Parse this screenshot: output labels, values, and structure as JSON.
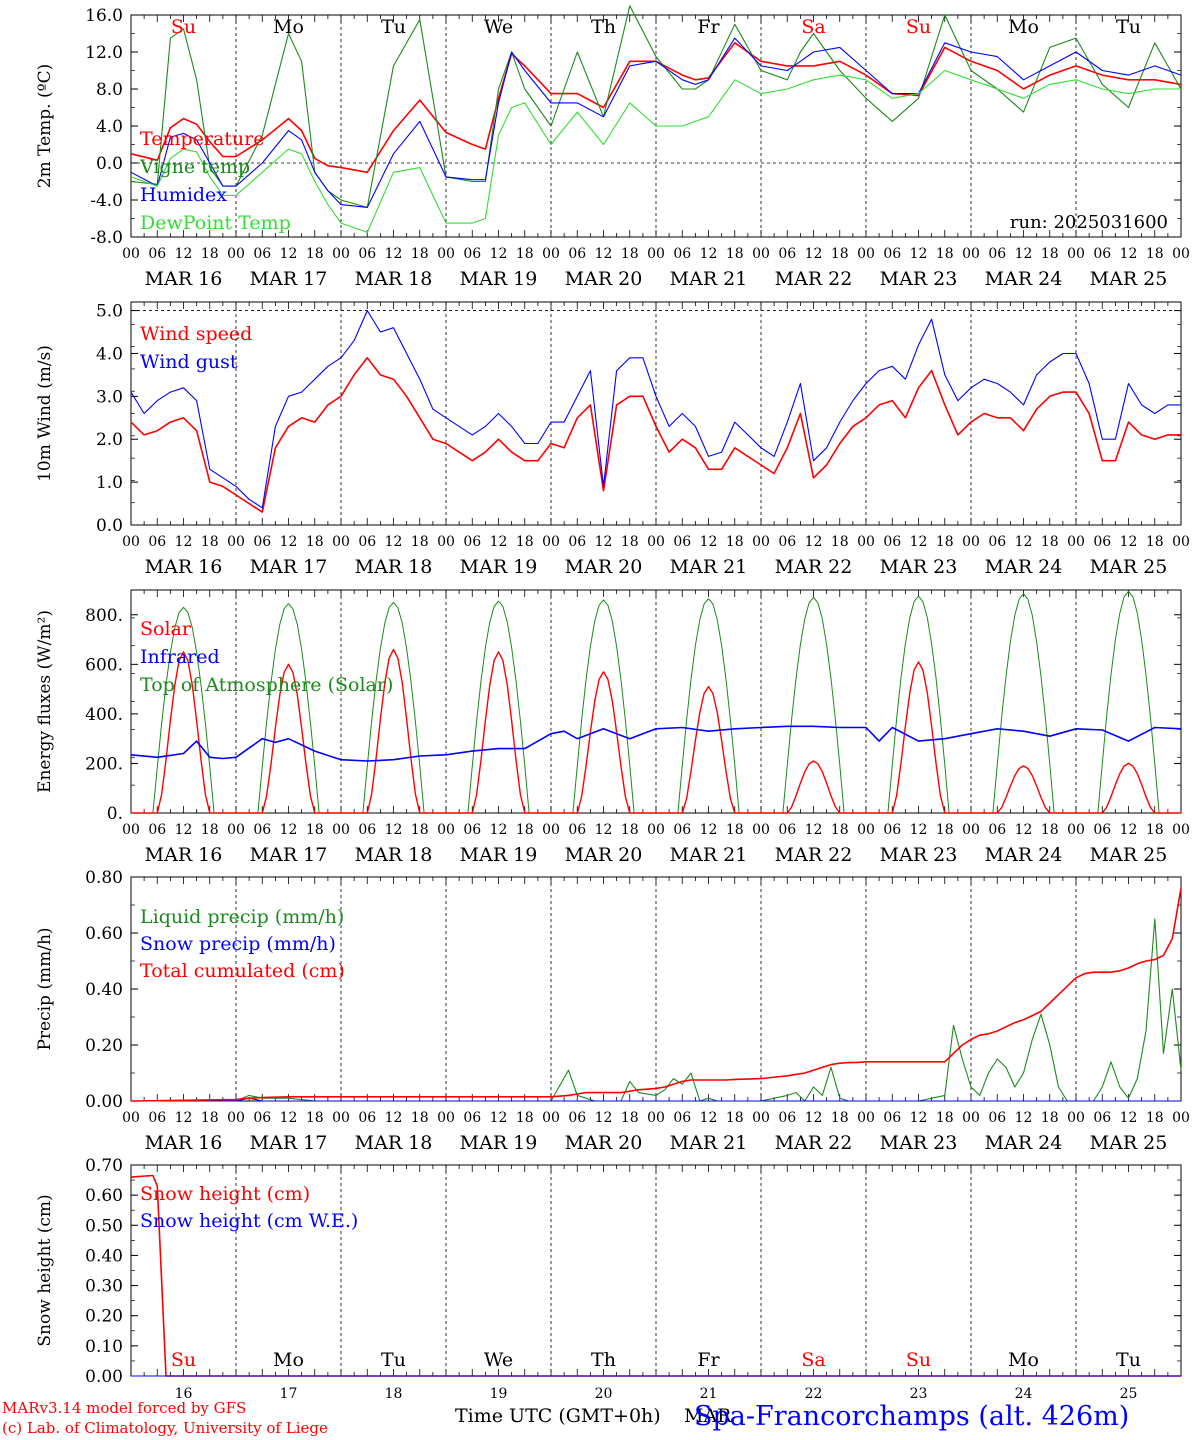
{
  "colors": {
    "red": "#ff0000",
    "green": "#1a8a1a",
    "blue": "#0000ff",
    "lightgreen": "#33dd33",
    "black": "#000000"
  },
  "days": {
    "weekday_top": [
      "Su",
      "Mo",
      "Tu",
      "We",
      "Th",
      "Fr",
      "Sa",
      "Su",
      "Mo",
      "Tu"
    ],
    "weekday_colors": [
      "red",
      "black",
      "black",
      "black",
      "black",
      "black",
      "red",
      "red",
      "black",
      "black"
    ],
    "date_labels": [
      "MAR 16",
      "MAR 17",
      "MAR 18",
      "MAR 19",
      "MAR 20",
      "MAR 21",
      "MAR 22",
      "MAR 23",
      "MAR 24",
      "MAR 25"
    ],
    "hour_ticks": [
      "00",
      "06",
      "12",
      "18"
    ],
    "final_hour": "00",
    "bottom_day_numbers": [
      "16",
      "17",
      "18",
      "19",
      "20",
      "21",
      "22",
      "23",
      "24",
      "25"
    ]
  },
  "footer": {
    "credit1": "MARv3.14 model forced by GFS",
    "credit2": "(c) Lab. of Climatology, University of Liege",
    "xlabel": "Time UTC (GMT+0h)",
    "month": "MAR",
    "station": "Spa-Francorchamps (alt. 426m)"
  },
  "chart_data": [
    {
      "type": "line",
      "ylabel": "2m Temp. (ºC)",
      "ylim": [
        -8,
        16
      ],
      "yticks": [
        "16.0",
        "12.0",
        "8.0",
        "4.0",
        "0.0",
        "-4.0",
        "-8.0"
      ],
      "annotation": "run: 2025031600",
      "x_hours_from_mar16_00": [
        0,
        6,
        9,
        12,
        15,
        18,
        21,
        24,
        30,
        36,
        39,
        42,
        45,
        48,
        54,
        60,
        66,
        72,
        78,
        81,
        84,
        87,
        90,
        96,
        102,
        108,
        114,
        120,
        126,
        129,
        132,
        138,
        144,
        150,
        153,
        156,
        162,
        168,
        174,
        180,
        186,
        192,
        198,
        204,
        210,
        216,
        222,
        228,
        234,
        240
      ],
      "series": [
        {
          "name": "Temperature",
          "color": "red",
          "values": [
            1.0,
            0.3,
            3.8,
            4.8,
            4.2,
            2.3,
            0.7,
            0.7,
            2.5,
            4.8,
            3.5,
            0.5,
            -0.3,
            -0.5,
            -1.0,
            3.5,
            6.8,
            3.3,
            2.0,
            1.5,
            7.0,
            11.8,
            10.5,
            7.5,
            7.5,
            6.0,
            11.0,
            11.0,
            9.5,
            9.0,
            9.2,
            13.0,
            11.0,
            10.5,
            10.5,
            10.5,
            11.0,
            9.5,
            7.5,
            7.3,
            12.5,
            11.0,
            10.0,
            8.0,
            9.5,
            10.5,
            9.5,
            9.0,
            9.0,
            8.5
          ]
        },
        {
          "name": "Vigne temp",
          "color": "green",
          "values": [
            -2.0,
            -2.3,
            13.5,
            14.5,
            9.0,
            -0.5,
            -2.5,
            -2.5,
            3.0,
            14.0,
            11.0,
            -1.0,
            -3.0,
            -4.0,
            -4.8,
            10.5,
            15.5,
            -1.5,
            -2.0,
            -2.0,
            8.0,
            12.0,
            8.0,
            4.0,
            12.0,
            5.0,
            17.0,
            11.5,
            8.0,
            8.0,
            9.0,
            15.0,
            10.0,
            9.0,
            12.0,
            14.0,
            10.0,
            7.0,
            4.5,
            7.0,
            16.0,
            10.0,
            8.0,
            5.5,
            12.5,
            13.5,
            8.5,
            6.0,
            13.0,
            8.0
          ]
        },
        {
          "name": "Humidex",
          "color": "blue",
          "values": [
            -1.0,
            -2.5,
            2.8,
            3.2,
            2.5,
            0.0,
            -2.5,
            -2.5,
            0.0,
            3.5,
            2.5,
            -1.0,
            -3.0,
            -4.5,
            -4.8,
            1.0,
            4.5,
            -1.5,
            -1.8,
            -1.8,
            6.5,
            12.0,
            10.0,
            6.5,
            6.5,
            5.0,
            10.5,
            11.0,
            9.0,
            8.5,
            9.0,
            13.5,
            10.5,
            10.0,
            11.0,
            12.0,
            12.5,
            10.0,
            7.5,
            7.5,
            13.0,
            12.0,
            11.5,
            9.0,
            10.5,
            12.0,
            10.0,
            9.5,
            10.5,
            9.5
          ]
        },
        {
          "name": "DewPoint Temp",
          "color": "lightgreen",
          "values": [
            -1.5,
            -2.5,
            0.5,
            1.5,
            1.2,
            -1.5,
            -3.5,
            -3.5,
            -1.0,
            1.5,
            1.0,
            -2.0,
            -4.5,
            -6.5,
            -7.5,
            -1.0,
            -0.5,
            -6.5,
            -6.5,
            -6.0,
            3.0,
            6.0,
            6.5,
            2.0,
            5.5,
            2.0,
            6.5,
            4.0,
            4.0,
            4.5,
            5.0,
            9.0,
            7.5,
            8.0,
            8.5,
            9.0,
            9.5,
            9.0,
            7.0,
            7.5,
            10.0,
            9.0,
            8.0,
            7.0,
            8.5,
            9.0,
            8.0,
            7.5,
            8.0,
            8.0
          ]
        }
      ]
    },
    {
      "type": "line",
      "ylabel": "10m Wind (m/s)",
      "ylim": [
        0,
        5.2
      ],
      "yticks": [
        "5.0",
        "4.0",
        "3.0",
        "2.0",
        "1.0",
        "0.0"
      ],
      "x_hours_from_mar16_00": [
        0,
        3,
        6,
        9,
        12,
        15,
        18,
        21,
        24,
        27,
        30,
        33,
        36,
        39,
        42,
        45,
        48,
        51,
        54,
        57,
        60,
        63,
        66,
        69,
        72,
        75,
        78,
        81,
        84,
        87,
        90,
        93,
        96,
        99,
        102,
        105,
        108,
        111,
        114,
        117,
        120,
        123,
        126,
        129,
        132,
        135,
        138,
        141,
        144,
        147,
        150,
        153,
        156,
        159,
        162,
        165,
        168,
        171,
        174,
        177,
        180,
        183,
        186,
        189,
        192,
        195,
        198,
        201,
        204,
        207,
        210,
        213,
        216,
        219,
        222,
        225,
        228,
        231,
        234,
        237,
        240
      ],
      "series": [
        {
          "name": "Wind speed",
          "color": "red",
          "values": [
            2.4,
            2.1,
            2.2,
            2.4,
            2.5,
            2.2,
            1.0,
            0.9,
            0.7,
            0.5,
            0.3,
            1.8,
            2.3,
            2.5,
            2.4,
            2.8,
            3.0,
            3.5,
            3.9,
            3.5,
            3.4,
            3.0,
            2.5,
            2.0,
            1.9,
            1.7,
            1.5,
            1.7,
            2.0,
            1.7,
            1.5,
            1.5,
            1.9,
            1.8,
            2.5,
            2.8,
            0.8,
            2.8,
            3.0,
            3.0,
            2.3,
            1.7,
            2.0,
            1.8,
            1.3,
            1.3,
            1.8,
            1.6,
            1.4,
            1.2,
            1.8,
            2.6,
            1.1,
            1.4,
            1.9,
            2.3,
            2.5,
            2.8,
            2.9,
            2.5,
            3.2,
            3.6,
            2.8,
            2.1,
            2.4,
            2.6,
            2.5,
            2.5,
            2.2,
            2.7,
            3.0,
            3.1,
            3.1,
            2.6,
            1.5,
            1.5,
            2.4,
            2.1,
            2.0,
            2.1,
            2.1
          ]
        },
        {
          "name": "Wind gust",
          "color": "blue",
          "values": [
            3.1,
            2.6,
            2.9,
            3.1,
            3.2,
            2.9,
            1.3,
            1.1,
            0.9,
            0.6,
            0.4,
            2.3,
            3.0,
            3.1,
            3.4,
            3.7,
            3.9,
            4.3,
            5.0,
            4.5,
            4.6,
            4.0,
            3.4,
            2.7,
            2.5,
            2.3,
            2.1,
            2.3,
            2.6,
            2.3,
            1.9,
            1.9,
            2.4,
            2.4,
            3.0,
            3.6,
            0.9,
            3.6,
            3.9,
            3.9,
            3.0,
            2.3,
            2.6,
            2.3,
            1.6,
            1.7,
            2.4,
            2.1,
            1.8,
            1.6,
            2.4,
            3.3,
            1.5,
            1.8,
            2.4,
            2.9,
            3.3,
            3.6,
            3.7,
            3.4,
            4.2,
            4.8,
            3.5,
            2.9,
            3.2,
            3.4,
            3.3,
            3.1,
            2.8,
            3.5,
            3.8,
            4.0,
            4.0,
            3.3,
            2.0,
            2.0,
            3.3,
            2.8,
            2.6,
            2.8,
            2.8
          ]
        }
      ]
    },
    {
      "type": "line",
      "ylabel": "Energy fluxes (W/m²)",
      "ylim": [
        0,
        900
      ],
      "yticks": [
        "800.",
        "600.",
        "400.",
        "200.",
        "0."
      ],
      "days_solar_peak": [
        650,
        600,
        660,
        650,
        570,
        510,
        210,
        610,
        190,
        200
      ],
      "days_toa_peak": [
        830,
        845,
        850,
        855,
        860,
        865,
        870,
        875,
        885,
        895
      ],
      "infrared_x_hours": [
        0,
        6,
        12,
        15,
        18,
        21,
        24,
        30,
        33,
        36,
        42,
        48,
        54,
        60,
        66,
        72,
        78,
        84,
        90,
        96,
        99,
        102,
        108,
        114,
        120,
        126,
        132,
        138,
        144,
        150,
        156,
        162,
        168,
        171,
        174,
        180,
        186,
        192,
        198,
        204,
        210,
        216,
        222,
        228,
        234,
        240
      ],
      "series": [
        {
          "name": "Solar",
          "color": "red",
          "values": []
        },
        {
          "name": "Infrared",
          "color": "blue",
          "values": [
            235,
            225,
            240,
            290,
            225,
            220,
            225,
            300,
            285,
            300,
            250,
            215,
            210,
            215,
            230,
            235,
            250,
            260,
            260,
            320,
            330,
            300,
            340,
            300,
            340,
            345,
            330,
            340,
            345,
            350,
            350,
            345,
            345,
            290,
            345,
            290,
            300,
            320,
            340,
            330,
            310,
            340,
            335,
            290,
            345,
            340
          ]
        },
        {
          "name": "Top of Atmosphere (Solar)",
          "color": "green",
          "values": []
        }
      ]
    },
    {
      "type": "line",
      "ylabel": "Precip (mm/h)",
      "ylim": [
        0,
        0.8
      ],
      "yticks": [
        "0.80",
        "0.60",
        "0.40",
        "0.20",
        "0.00"
      ],
      "x_hours_from_mar16_00": [
        0,
        24,
        27,
        30,
        36,
        42,
        48,
        72,
        96,
        100,
        102,
        104,
        106,
        108,
        112,
        114,
        116,
        120,
        122,
        124,
        126,
        128,
        130,
        132,
        134,
        136,
        138,
        144,
        150,
        152,
        154,
        156,
        158,
        160,
        162,
        164,
        166,
        168,
        172,
        180,
        186,
        188,
        190,
        192,
        194,
        196,
        198,
        200,
        202,
        204,
        206,
        208,
        210,
        212,
        214,
        216,
        218,
        220,
        222,
        224,
        226,
        228,
        230,
        232,
        234,
        236,
        238,
        240
      ],
      "series": [
        {
          "name": "Liquid precip (mm/h)",
          "color": "green",
          "values": [
            0,
            0,
            0.02,
            0.01,
            0.01,
            0,
            0,
            0,
            0,
            0.11,
            0.02,
            0.01,
            0,
            0,
            0,
            0.07,
            0.03,
            0.02,
            0.04,
            0.08,
            0.06,
            0.1,
            0,
            0.01,
            0,
            0,
            0,
            0,
            0.02,
            0.03,
            0,
            0.05,
            0.02,
            0.12,
            0.01,
            0,
            0,
            0,
            0,
            0,
            0.02,
            0.27,
            0.15,
            0.05,
            0.02,
            0.1,
            0.15,
            0.12,
            0.05,
            0.1,
            0.22,
            0.31,
            0.2,
            0.05,
            0,
            0,
            0,
            0,
            0.05,
            0.14,
            0.05,
            0.01,
            0.08,
            0.25,
            0.65,
            0.17,
            0.4,
            0.11
          ]
        },
        {
          "name": "Snow precip (mm/h)",
          "color": "blue",
          "values": [
            0,
            0,
            0.01,
            0,
            0,
            0,
            0,
            0,
            0,
            0,
            0,
            0,
            0,
            0,
            0,
            0,
            0,
            0,
            0,
            0,
            0,
            0,
            0,
            0,
            0,
            0,
            0,
            0,
            0,
            0,
            0,
            0,
            0,
            0,
            0,
            0,
            0,
            0,
            0,
            0,
            0,
            0,
            0,
            0,
            0,
            0,
            0,
            0,
            0,
            0,
            0,
            0,
            0,
            0,
            0,
            0,
            0,
            0,
            0,
            0,
            0,
            0,
            0,
            0,
            0,
            0,
            0,
            0
          ]
        },
        {
          "name": "Total cumulated (cm)",
          "color": "red",
          "values": [
            0,
            0.005,
            0.01,
            0.012,
            0.015,
            0.015,
            0.015,
            0.015,
            0.015,
            0.02,
            0.025,
            0.03,
            0.03,
            0.03,
            0.03,
            0.035,
            0.04,
            0.045,
            0.05,
            0.06,
            0.07,
            0.075,
            0.075,
            0.075,
            0.075,
            0.075,
            0.077,
            0.08,
            0.09,
            0.095,
            0.1,
            0.11,
            0.12,
            0.13,
            0.135,
            0.137,
            0.138,
            0.14,
            0.14,
            0.14,
            0.14,
            0.17,
            0.2,
            0.22,
            0.235,
            0.24,
            0.25,
            0.265,
            0.28,
            0.29,
            0.305,
            0.32,
            0.35,
            0.38,
            0.41,
            0.44,
            0.455,
            0.46,
            0.46,
            0.46,
            0.465,
            0.475,
            0.49,
            0.5,
            0.505,
            0.52,
            0.58,
            0.76
          ]
        }
      ]
    },
    {
      "type": "line",
      "ylabel": "Snow height (cm)",
      "ylim": [
        0,
        0.7
      ],
      "yticks": [
        "0.70",
        "0.60",
        "0.50",
        "0.40",
        "0.30",
        "0.20",
        "0.10",
        "0.00"
      ],
      "x_hours_from_mar16_00": [
        0,
        5,
        6,
        8,
        240
      ],
      "series": [
        {
          "name": "Snow height (cm)",
          "color": "red",
          "values": [
            0.66,
            0.665,
            0.63,
            0.0,
            0.0
          ]
        },
        {
          "name": "Snow height (cm W.E.)",
          "color": "blue",
          "values": [
            0,
            0,
            0,
            0,
            0
          ]
        }
      ]
    }
  ]
}
